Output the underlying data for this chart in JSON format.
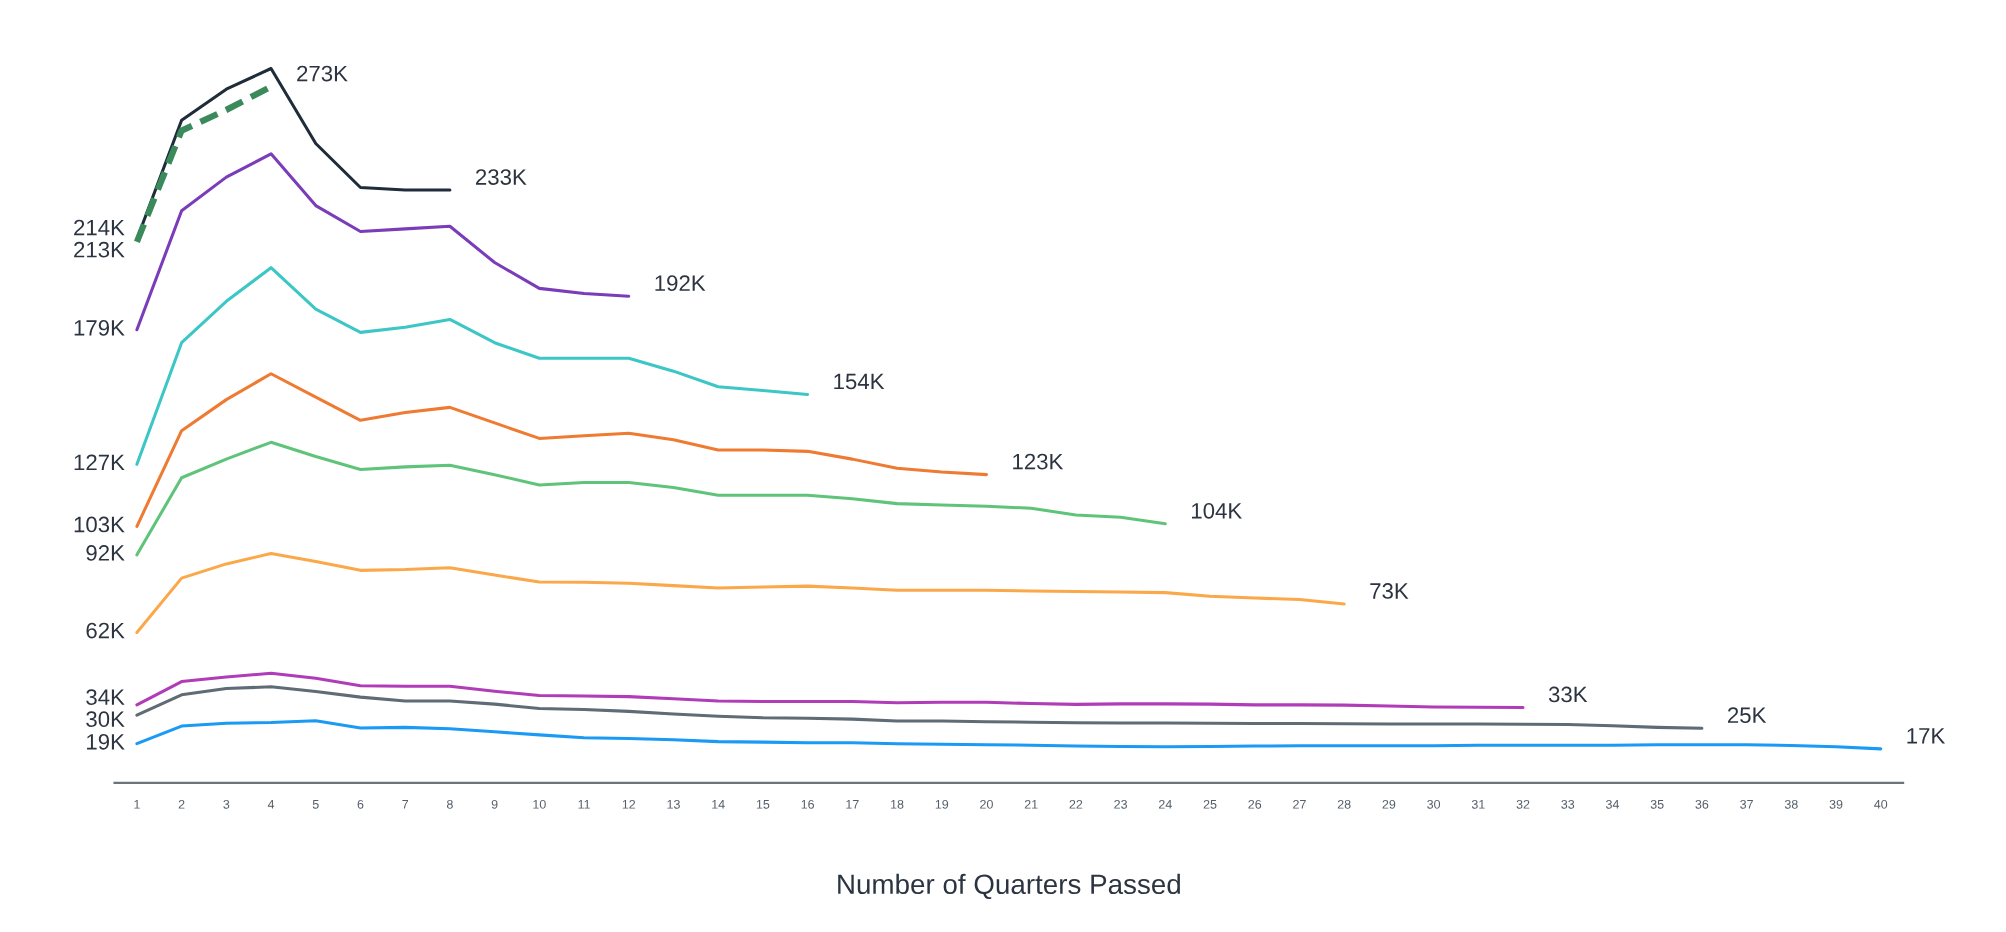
{
  "chart_data": {
    "type": "line",
    "xlabel": "Number of Quarters Passed",
    "categories": [
      "1",
      "2",
      "3",
      "4",
      "5",
      "6",
      "7",
      "8",
      "9",
      "10",
      "11",
      "12",
      "13",
      "14",
      "15",
      "16",
      "17",
      "18",
      "19",
      "20",
      "21",
      "22",
      "23",
      "24",
      "25",
      "26",
      "27",
      "28",
      "29",
      "30",
      "31",
      "32",
      "33",
      "34",
      "35",
      "36",
      "37",
      "38",
      "39",
      "40"
    ],
    "tick_labels": "x",
    "series": [
      {
        "color": "#1f2d3a",
        "line_style": "solid",
        "values": [
          214,
          260,
          272,
          280,
          251,
          234,
          233,
          233,
          null,
          null,
          null,
          null,
          null,
          null,
          null,
          null,
          null,
          null,
          null,
          null,
          null,
          null,
          null,
          null,
          null,
          null,
          null,
          null,
          null,
          null,
          null,
          null,
          null,
          null,
          null,
          null,
          null,
          null,
          null,
          null
        ],
        "value_labels": [
          "214K",
          null,
          null,
          null,
          null,
          null,
          null,
          "233K",
          null,
          null,
          null,
          null,
          null,
          null,
          null,
          null,
          null,
          null,
          null,
          null,
          null,
          null,
          null,
          null,
          null,
          null,
          null,
          null,
          null,
          null,
          null,
          null,
          null,
          null,
          null,
          null,
          null,
          null,
          null,
          null
        ]
      },
      {
        "color": "#3a8a5c",
        "line_style": "dashed",
        "values": [
          213,
          256,
          264,
          273,
          null,
          null,
          null,
          null,
          null,
          null,
          null,
          null,
          null,
          null,
          null,
          null,
          null,
          null,
          null,
          null,
          null,
          null,
          null,
          null,
          null,
          null,
          null,
          null,
          null,
          null,
          null,
          null,
          null,
          null,
          null,
          null,
          null,
          null,
          null,
          null
        ],
        "value_labels": [
          "213K",
          null,
          null,
          "273K",
          null,
          null,
          null,
          null,
          null,
          null,
          null,
          null,
          null,
          null,
          null,
          null,
          null,
          null,
          null,
          null,
          null,
          null,
          null,
          null,
          null,
          null,
          null,
          null,
          null,
          null,
          null,
          null,
          null,
          null,
          null,
          null,
          null,
          null,
          null,
          null
        ]
      },
      {
        "color": "#7a3cb8",
        "line_style": "solid",
        "values": [
          179,
          225,
          238,
          247,
          227,
          217,
          218,
          219,
          205,
          195,
          193,
          192,
          null,
          null,
          null,
          null,
          null,
          null,
          null,
          null,
          null,
          null,
          null,
          null,
          null,
          null,
          null,
          null,
          null,
          null,
          null,
          null,
          null,
          null,
          null,
          null,
          null,
          null,
          null,
          null
        ],
        "value_labels": [
          "179K",
          null,
          null,
          null,
          null,
          null,
          null,
          null,
          null,
          null,
          null,
          "192K",
          null,
          null,
          null,
          null,
          null,
          null,
          null,
          null,
          null,
          null,
          null,
          null,
          null,
          null,
          null,
          null,
          null,
          null,
          null,
          null,
          null,
          null,
          null,
          null,
          null,
          null,
          null,
          null
        ]
      },
      {
        "color": "#3cc6c6",
        "line_style": "solid",
        "values": [
          127,
          174,
          190,
          203,
          187,
          178,
          180,
          183,
          174,
          168,
          168,
          168,
          163,
          157,
          155.5,
          154,
          null,
          null,
          null,
          null,
          null,
          null,
          null,
          null,
          null,
          null,
          null,
          null,
          null,
          null,
          null,
          null,
          null,
          null,
          null,
          null,
          null,
          null,
          null,
          null
        ],
        "value_labels": [
          "127K",
          null,
          null,
          null,
          null,
          null,
          null,
          null,
          null,
          null,
          null,
          null,
          null,
          null,
          null,
          "154K",
          null,
          null,
          null,
          null,
          null,
          null,
          null,
          null,
          null,
          null,
          null,
          null,
          null,
          null,
          null,
          null,
          null,
          null,
          null,
          null,
          null,
          null,
          null,
          null
        ]
      },
      {
        "color": "#ef7a32",
        "line_style": "solid",
        "values": [
          103,
          140,
          152,
          162,
          153,
          144,
          147,
          149,
          143,
          137,
          138,
          139,
          136.5,
          132.5,
          132.5,
          132,
          129,
          125.5,
          124,
          123,
          null,
          null,
          null,
          null,
          null,
          null,
          null,
          null,
          null,
          null,
          null,
          null,
          null,
          null,
          null,
          null,
          null,
          null,
          null,
          null
        ],
        "value_labels": [
          "103K",
          null,
          null,
          null,
          null,
          null,
          null,
          null,
          null,
          null,
          null,
          null,
          null,
          null,
          null,
          null,
          null,
          null,
          null,
          "123K",
          null,
          null,
          null,
          null,
          null,
          null,
          null,
          null,
          null,
          null,
          null,
          null,
          null,
          null,
          null,
          null,
          null,
          null,
          null,
          null
        ]
      },
      {
        "color": "#5fc47a",
        "line_style": "solid",
        "values": [
          92,
          121.8,
          129,
          135.5,
          130,
          125,
          126,
          126.6,
          123,
          119,
          120,
          120,
          118,
          115,
          115,
          115,
          113.7,
          111.8,
          111.3,
          110.8,
          110,
          107.4,
          106.5,
          104,
          null,
          null,
          null,
          null,
          null,
          null,
          null,
          null,
          null,
          null,
          null,
          null,
          null,
          null,
          null,
          null
        ],
        "value_labels": [
          "92K",
          null,
          null,
          null,
          null,
          null,
          null,
          null,
          null,
          null,
          null,
          null,
          null,
          null,
          null,
          null,
          null,
          null,
          null,
          null,
          null,
          null,
          null,
          "104K",
          null,
          null,
          null,
          null,
          null,
          null,
          null,
          null,
          null,
          null,
          null,
          null,
          null,
          null,
          null,
          null
        ]
      },
      {
        "color": "#fba84a",
        "line_style": "solid",
        "values": [
          62,
          83,
          88.5,
          92.5,
          89.4,
          86,
          86.3,
          87,
          84.2,
          81.5,
          81.4,
          81,
          80.1,
          79.2,
          79.6,
          79.9,
          79.2,
          78.3,
          78.3,
          78.3,
          78,
          77.8,
          77.6,
          77.4,
          76,
          75.3,
          74.7,
          73,
          null,
          null,
          null,
          null,
          null,
          null,
          null,
          null,
          null,
          null,
          null,
          null
        ],
        "value_labels": [
          "62K",
          null,
          null,
          null,
          null,
          null,
          null,
          null,
          null,
          null,
          null,
          null,
          null,
          null,
          null,
          null,
          null,
          null,
          null,
          null,
          null,
          null,
          null,
          null,
          null,
          null,
          null,
          "73K",
          null,
          null,
          null,
          null,
          null,
          null,
          null,
          null,
          null,
          null,
          null,
          null
        ]
      },
      {
        "color": "#b03cb8",
        "line_style": "solid",
        "values": [
          34,
          43,
          44.8,
          46.2,
          44.3,
          41.4,
          41.2,
          41.2,
          39.3,
          37.6,
          37.4,
          37.2,
          36.4,
          35.5,
          35.3,
          35.3,
          35.3,
          34.8,
          35,
          35,
          34.5,
          34.2,
          34.4,
          34.4,
          34.3,
          34,
          34,
          33.9,
          33.6,
          33.2,
          33.1,
          33,
          null,
          null,
          null,
          null,
          null,
          null,
          null,
          null
        ],
        "value_labels": [
          "34K",
          null,
          null,
          null,
          null,
          null,
          null,
          null,
          null,
          null,
          null,
          null,
          null,
          null,
          null,
          null,
          null,
          null,
          null,
          null,
          null,
          null,
          null,
          null,
          null,
          null,
          null,
          null,
          null,
          null,
          null,
          "33K",
          null,
          null,
          null,
          null,
          null,
          null,
          null,
          null
        ]
      },
      {
        "color": "#5f6b75",
        "line_style": "solid",
        "values": [
          30,
          37.9,
          40.3,
          41,
          39.2,
          37,
          35.5,
          35.5,
          34.3,
          32.6,
          32.2,
          31.5,
          30.5,
          29.6,
          29,
          28.8,
          28.5,
          27.8,
          27.8,
          27.5,
          27.3,
          27.1,
          27,
          27,
          26.9,
          26.8,
          26.8,
          26.7,
          26.6,
          26.6,
          26.6,
          26.5,
          26.4,
          25.9,
          25.3,
          25,
          null,
          null,
          null,
          null
        ],
        "value_labels": [
          "30K",
          null,
          null,
          null,
          null,
          null,
          null,
          null,
          null,
          null,
          null,
          null,
          null,
          null,
          null,
          null,
          null,
          null,
          null,
          null,
          null,
          null,
          null,
          null,
          null,
          null,
          null,
          null,
          null,
          null,
          null,
          null,
          null,
          null,
          null,
          "25K",
          null,
          null,
          null,
          null
        ]
      },
      {
        "color": "#1a9af5",
        "line_style": "solid",
        "values": [
          19,
          25.8,
          26.9,
          27.2,
          27.9,
          25.1,
          25.3,
          24.8,
          23.6,
          22.4,
          21.3,
          21,
          20.5,
          19.8,
          19.6,
          19.4,
          19.4,
          19,
          18.8,
          18.6,
          18.4,
          18.1,
          17.9,
          17.8,
          17.9,
          18.1,
          18.2,
          18.2,
          18.2,
          18.2,
          18.4,
          18.4,
          18.4,
          18.4,
          18.6,
          18.6,
          18.6,
          18.3,
          17.8,
          17
        ],
        "value_labels": [
          "19K",
          null,
          null,
          null,
          null,
          null,
          null,
          null,
          null,
          null,
          null,
          null,
          null,
          null,
          null,
          null,
          null,
          null,
          null,
          null,
          null,
          null,
          null,
          null,
          null,
          null,
          null,
          null,
          null,
          null,
          null,
          null,
          null,
          null,
          null,
          null,
          null,
          null,
          null,
          "17K"
        ]
      }
    ]
  }
}
